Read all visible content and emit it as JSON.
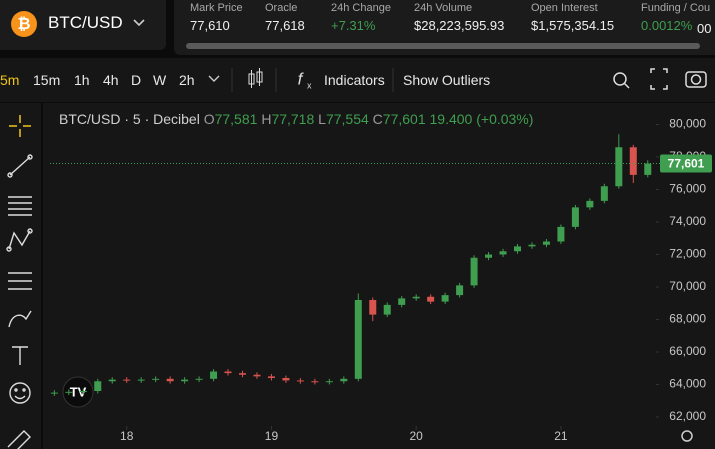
{
  "header": {
    "symbol": "BTC/USD",
    "stats": [
      {
        "label": "Mark Price",
        "value": "77,610"
      },
      {
        "label": "Oracle",
        "value": "77,618"
      },
      {
        "label": "24h Change",
        "value": "+7.31%"
      },
      {
        "label": "24h Volume",
        "value": "$28,223,595.93"
      },
      {
        "label": "Open Interest",
        "value": "$1,575,354.15"
      },
      {
        "label": "Funding / Cou",
        "value": "0.0012%",
        "extra": "00"
      }
    ]
  },
  "toolbar": {
    "intervals": [
      "5m",
      "15m",
      "1h",
      "4h",
      "D",
      "W",
      "2h"
    ],
    "indicators": "Indicators",
    "outliers": "Show Outliers"
  },
  "chart_data": {
    "type": "candlestick",
    "legend": {
      "title": "BTC/USD · 5 · Decibel",
      "o_label": "O",
      "o": "77,581",
      "h_label": "H",
      "h": "77,718",
      "l_label": "L",
      "l": "77,554",
      "c_label": "C",
      "c": "77,601",
      "change": "19.400 (+0.03%)"
    },
    "x": [
      17.5,
      17.6,
      17.7,
      17.8,
      17.9,
      18.0,
      18.1,
      18.2,
      18.3,
      18.4,
      18.5,
      18.6,
      18.7,
      18.8,
      18.9,
      19.0,
      19.1,
      19.2,
      19.3,
      19.4,
      19.5,
      19.6,
      19.7,
      19.8,
      19.9,
      20.0,
      20.1,
      20.2,
      20.3,
      20.4,
      20.5,
      20.6,
      20.7,
      20.8,
      20.9,
      21.0,
      21.1,
      21.2,
      21.3,
      21.4,
      21.5,
      21.6
    ],
    "open": [
      63450,
      63500,
      63550,
      63600,
      64200,
      64300,
      64250,
      64300,
      64350,
      64200,
      64300,
      64350,
      64800,
      64700,
      64600,
      64500,
      64400,
      64250,
      64200,
      64150,
      64200,
      64350,
      69200,
      68300,
      68900,
      69300,
      69400,
      69100,
      69500,
      70100,
      71800,
      72000,
      72200,
      72500,
      72600,
      72800,
      73700,
      74900,
      75300,
      76200,
      78600,
      76900
    ],
    "high": [
      63650,
      63700,
      63750,
      64350,
      64450,
      64450,
      64450,
      64500,
      64500,
      64450,
      64500,
      64950,
      64950,
      64850,
      64750,
      64650,
      64550,
      64400,
      64350,
      64350,
      64500,
      69600,
      69350,
      69050,
      69450,
      69550,
      69550,
      69650,
      70250,
      71950,
      72150,
      72350,
      72650,
      72750,
      72950,
      73850,
      75050,
      75450,
      76350,
      79400,
      78750,
      77800
    ],
    "low": [
      63300,
      63350,
      63400,
      63450,
      64050,
      64100,
      64100,
      64150,
      64050,
      64050,
      64150,
      64200,
      64550,
      64450,
      64350,
      64250,
      64100,
      64050,
      64000,
      64000,
      64050,
      64200,
      67900,
      68150,
      68750,
      69150,
      68950,
      68950,
      69350,
      69950,
      71650,
      71850,
      72050,
      72350,
      72450,
      72650,
      73550,
      74750,
      75150,
      76050,
      76400,
      76750
    ],
    "close": [
      63500,
      63550,
      63600,
      64200,
      64300,
      64250,
      64300,
      64350,
      64200,
      64300,
      64350,
      64800,
      64700,
      64600,
      64500,
      64400,
      64250,
      64200,
      64150,
      64200,
      64350,
      69200,
      68300,
      68900,
      69300,
      69400,
      69100,
      69500,
      70100,
      71800,
      72000,
      72200,
      72500,
      72600,
      72800,
      73700,
      74900,
      75300,
      76200,
      78600,
      76900,
      77600
    ],
    "up_color": "#3f9e4f",
    "down_color": "#d9534f",
    "xlim": [
      17.47,
      21.65
    ],
    "xticks": [
      18,
      19,
      20,
      21
    ],
    "ylim": [
      61200,
      81200
    ],
    "yticks": [
      {
        "value": 62000,
        "label": "62,000"
      },
      {
        "value": 64000,
        "label": "64,000"
      },
      {
        "value": 66000,
        "label": "66,000"
      },
      {
        "value": 68000,
        "label": "68,000"
      },
      {
        "value": 70000,
        "label": "70,000"
      },
      {
        "value": 72000,
        "label": "72,000"
      },
      {
        "value": 74000,
        "label": "74,000"
      },
      {
        "value": 76000,
        "label": "76,000"
      },
      {
        "value": 78000,
        "label": "78,000"
      },
      {
        "value": 80000,
        "label": "80,000"
      }
    ],
    "last_price": {
      "value": 77601,
      "label": "77,601"
    }
  }
}
